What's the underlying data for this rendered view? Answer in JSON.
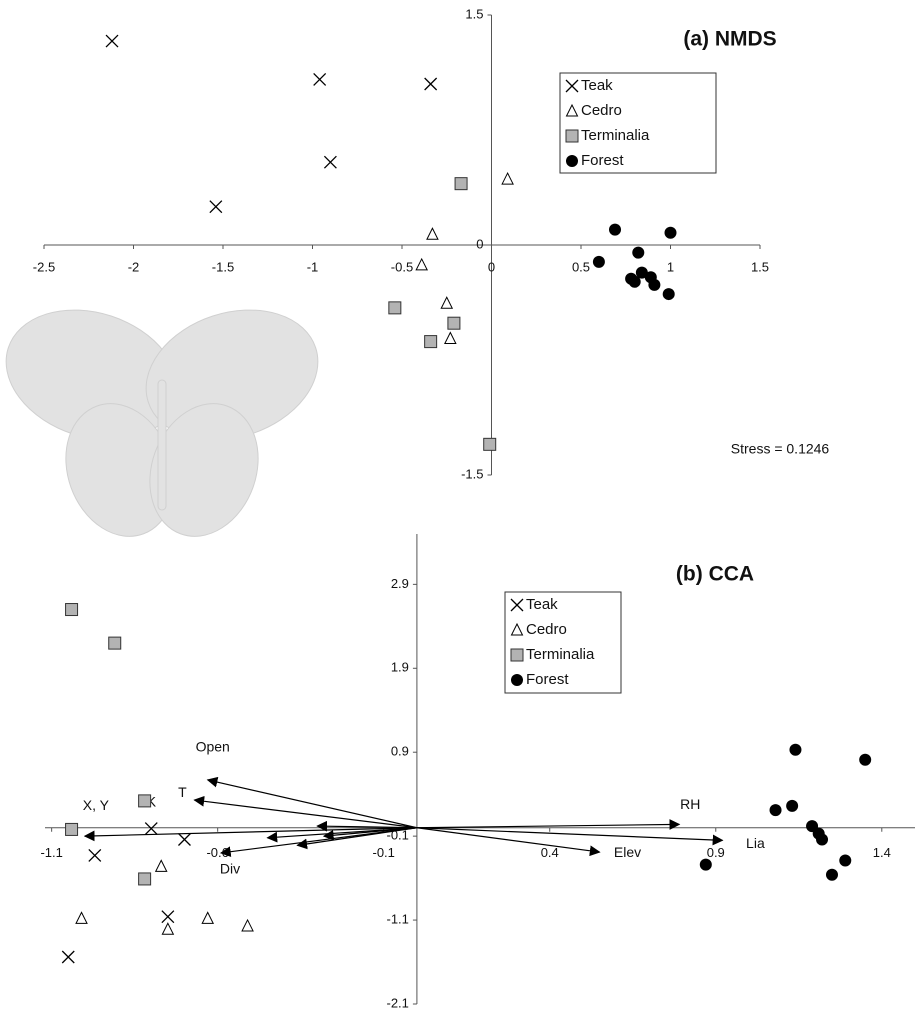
{
  "chart_data": [
    {
      "type": "scatter",
      "title": "(a) NMDS",
      "annotation": "Stress = 0.1246",
      "xlim": [
        -2.5,
        1.5
      ],
      "ylim": [
        -1.5,
        1.5
      ],
      "xticks": [
        -2.5,
        -2,
        -1.5,
        -1,
        -0.5,
        0,
        0.5,
        1,
        1.5
      ],
      "yticks": [
        -1.5,
        0,
        1.5
      ],
      "legend": "upper right",
      "series": [
        {
          "name": "Teak",
          "marker": "x",
          "color": "#000000",
          "x": [
            -2.12,
            -0.96,
            -0.34,
            -0.9,
            -1.54
          ],
          "values": [
            1.33,
            1.08,
            1.05,
            0.54,
            0.25
          ]
        },
        {
          "name": "Cedro",
          "marker": "triangle",
          "color": "#000000",
          "x": [
            0.09,
            -0.33,
            -0.39,
            -0.25,
            -0.23
          ],
          "values": [
            0.43,
            0.07,
            -0.13,
            -0.38,
            -0.61
          ]
        },
        {
          "name": "Terminalia",
          "marker": "square",
          "color": "#b3b3b3",
          "x": [
            -0.17,
            -0.54,
            -0.21,
            -0.34,
            -0.01
          ],
          "values": [
            0.4,
            -0.41,
            -0.51,
            -0.63,
            -1.3
          ]
        },
        {
          "name": "Forest",
          "marker": "circle",
          "color": "#000000",
          "x": [
            0.69,
            1.0,
            0.82,
            0.6,
            0.84,
            0.78,
            0.8,
            0.89,
            0.91,
            0.99
          ],
          "values": [
            0.1,
            0.08,
            -0.05,
            -0.11,
            -0.18,
            -0.22,
            -0.24,
            -0.21,
            -0.26,
            -0.32
          ]
        }
      ]
    },
    {
      "type": "biplot",
      "title": "(b) CCA",
      "xlim": [
        -1.12,
        1.5
      ],
      "ylim": [
        -2.1,
        3.5
      ],
      "xticks": [
        -1.1,
        -0.6,
        -0.1,
        0.4,
        0.9,
        1.4
      ],
      "yticks": [
        -2.1,
        -1.1,
        -0.1,
        0.9,
        1.9,
        2.9
      ],
      "legend": "upper center",
      "series": [
        {
          "name": "Teak",
          "marker": "x",
          "color": "#000000",
          "x": [
            -1.05,
            -0.97,
            -0.7,
            -0.8,
            -0.75
          ],
          "values": [
            -1.54,
            -0.33,
            -0.14,
            -0.01,
            -1.06
          ]
        },
        {
          "name": "Cedro",
          "marker": "triangle",
          "color": "#000000",
          "x": [
            -1.01,
            -0.77,
            -0.75,
            -0.63,
            -0.51
          ],
          "values": [
            -1.08,
            -0.46,
            -1.21,
            -1.08,
            -1.17
          ]
        },
        {
          "name": "Terminalia",
          "marker": "square",
          "color": "#b3b3b3",
          "x": [
            -1.04,
            -0.91,
            -0.82,
            -1.04,
            -0.82
          ],
          "values": [
            2.6,
            2.2,
            0.32,
            -0.02,
            -0.61
          ]
        },
        {
          "name": "Forest",
          "marker": "circle",
          "color": "#000000",
          "x": [
            1.14,
            1.35,
            1.08,
            1.13,
            1.19,
            1.21,
            1.22,
            1.29,
            1.25,
            0.87
          ],
          "values": [
            0.93,
            0.81,
            0.21,
            0.26,
            0.02,
            -0.07,
            -0.14,
            -0.39,
            -0.56,
            -0.44
          ]
        }
      ],
      "arrows": [
        {
          "label": "Open",
          "x": -0.63,
          "y": 0.57
        },
        {
          "label": "T",
          "x": -0.67,
          "y": 0.33
        },
        {
          "label": "X, Y",
          "x": -1.0,
          "y": -0.1
        },
        {
          "label": "K",
          "x": -0.45,
          "y": -0.12
        },
        {
          "label": "Div",
          "x": -0.59,
          "y": -0.3
        },
        {
          "x": -0.3,
          "y": 0.02
        },
        {
          "x": -0.36,
          "y": -0.21
        },
        {
          "x": -0.28,
          "y": -0.1
        },
        {
          "label": "RH",
          "x": 0.79,
          "y": 0.04
        },
        {
          "label": "Lia",
          "x": 0.92,
          "y": -0.15
        },
        {
          "label": "Elev",
          "x": 0.55,
          "y": -0.29
        }
      ]
    }
  ]
}
